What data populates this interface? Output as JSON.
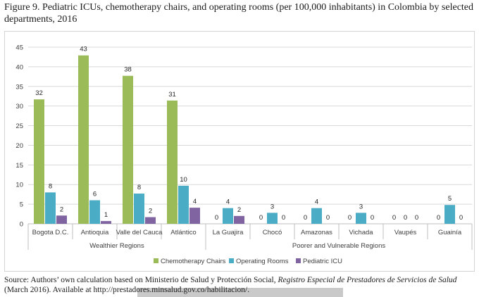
{
  "figure": {
    "title": "Figure 9. Pediatric ICUs, chemotherapy chairs, and operating rooms (per 100,000 inhabitants) in Colombia by selected departments, 2016",
    "source_prefix": "Source: Authors’ own calculation based on Ministerio de Salud y Protección Social, ",
    "source_italic": "Registro Especial de Prestadores de Servicios de Salud",
    "source_suffix": " (March 2016). Available at http://prestadores.minsalud.gov.co/habilitacion/."
  },
  "chart_data": {
    "type": "bar",
    "title": "",
    "xlabel": "",
    "ylabel": "",
    "ylim": [
      0,
      45
    ],
    "yticks": [
      0,
      5,
      10,
      15,
      20,
      25,
      30,
      35,
      40,
      45
    ],
    "grid": true,
    "legend_position": "bottom",
    "categories": [
      "Bogota D.C.",
      "Antioquia",
      "Valle del Cauca",
      "Atlántico",
      "La Guajira",
      "Chocó",
      "Amazonas",
      "Vichada",
      "Vaupés",
      "Guainía"
    ],
    "groups": [
      {
        "label": "Wealthier Regions",
        "start": 0,
        "end": 3
      },
      {
        "label": "Poorer and Vulnerable Regions",
        "start": 4,
        "end": 9
      }
    ],
    "series": [
      {
        "name": "Chemotherapy Chairs",
        "color": "#9bbb59",
        "values": [
          31.7,
          42.9,
          37.7,
          31.4,
          0,
          0,
          0,
          0,
          0,
          0
        ],
        "labels": [
          "32",
          "43",
          "38",
          "31",
          "0",
          "0",
          "0",
          "0",
          "0",
          "0"
        ]
      },
      {
        "name": "Operating Rooms",
        "color": "#4bacc6",
        "values": [
          8.0,
          6.0,
          7.7,
          9.7,
          4.0,
          2.8,
          4.0,
          2.8,
          0,
          4.8
        ],
        "labels": [
          "8",
          "6",
          "8",
          "10",
          "4",
          "3",
          "4",
          "3",
          "0",
          "5"
        ]
      },
      {
        "name": "Pediatric ICU",
        "color": "#8064a2",
        "values": [
          2.1,
          0.7,
          1.7,
          4.1,
          2.0,
          0,
          0,
          0,
          0,
          0
        ],
        "labels": [
          "2",
          "1",
          "2",
          "4",
          "2",
          "0",
          "0",
          "0",
          "0",
          "0"
        ]
      }
    ]
  }
}
